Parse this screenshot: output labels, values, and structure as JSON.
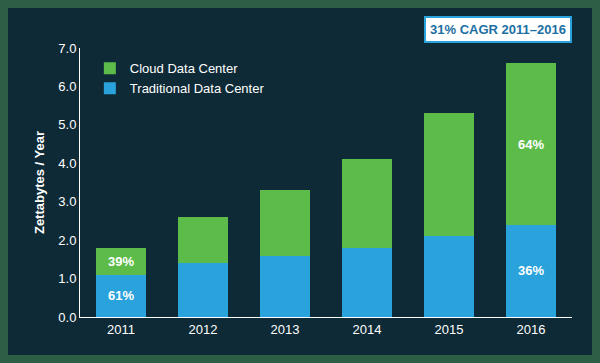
{
  "chart_data": {
    "type": "bar",
    "stacked": true,
    "categories": [
      "2011",
      "2012",
      "2013",
      "2014",
      "2015",
      "2016"
    ],
    "series": [
      {
        "name": "Traditional Data Center",
        "color": "#2aa2dc",
        "values": [
          1.1,
          1.4,
          1.6,
          1.8,
          2.1,
          2.4
        ]
      },
      {
        "name": "Cloud Data Center",
        "color": "#5dbb4a",
        "values": [
          0.7,
          1.2,
          1.7,
          2.3,
          3.2,
          4.2
        ]
      }
    ],
    "y_label": "Zettabytes / Year",
    "ylim": [
      0,
      7
    ],
    "yticks": [
      {
        "value": 0,
        "label": "0.0"
      },
      {
        "value": 1,
        "label": "1.0"
      },
      {
        "value": 2,
        "label": "2.0"
      },
      {
        "value": 3,
        "label": "3.0"
      },
      {
        "value": 4,
        "label": "4.0"
      },
      {
        "value": 5,
        "label": "5.0"
      },
      {
        "value": 6,
        "label": "6.0"
      },
      {
        "value": 7,
        "label": "7.0"
      }
    ],
    "grid": false,
    "legend": "upper left",
    "annotations": [
      {
        "text": "39%",
        "category": "2011",
        "series": "Cloud Data Center"
      },
      {
        "text": "61%",
        "category": "2011",
        "series": "Traditional Data Center"
      },
      {
        "text": "64%",
        "category": "2016",
        "series": "Cloud Data Center"
      },
      {
        "text": "36%",
        "category": "2016",
        "series": "Traditional Data Center"
      },
      {
        "text": "31% CAGR 2011–2016"
      }
    ]
  }
}
